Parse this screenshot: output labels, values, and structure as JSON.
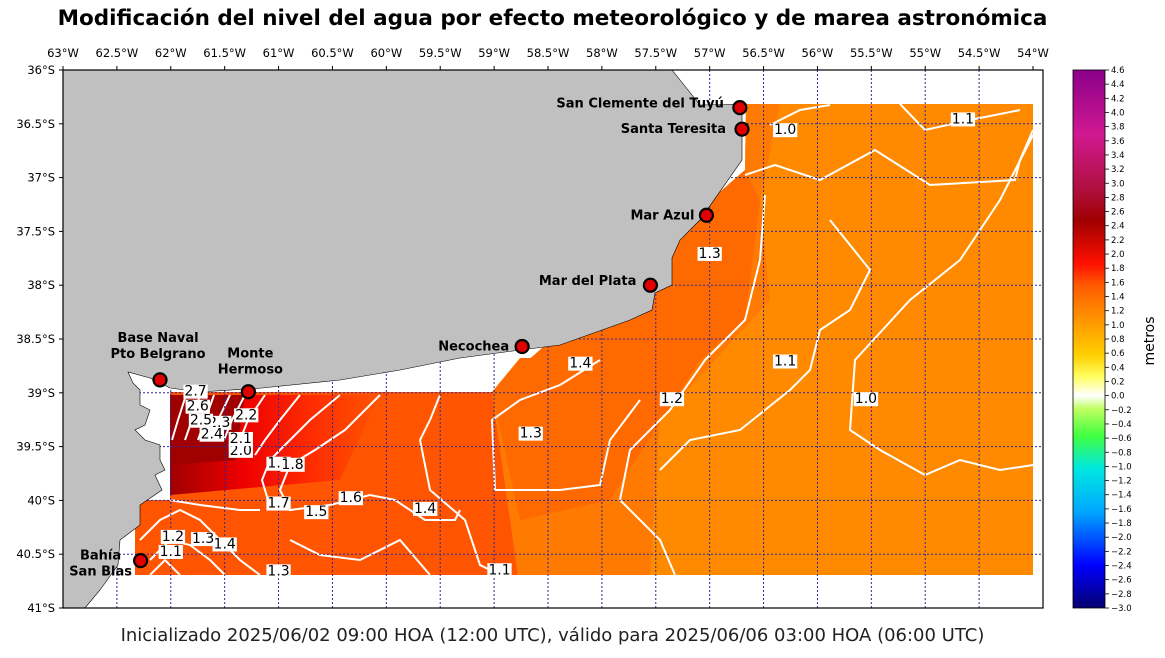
{
  "title": "Modificación del nivel del agua por efecto meteorológico y de marea astronómica",
  "footer": "Inicializado 2025/06/02 09:00 HOA (12:00 UTC), válido para 2025/06/06 03:00 HOA (06:00 UTC)",
  "colors": {
    "land": "#c0c0c0",
    "grid": "#2a2aa0",
    "station_fill": "#e00000",
    "contour": "#ffffff"
  },
  "chart_data": {
    "type": "map",
    "lon_ticks": [
      -63,
      -62.5,
      -62,
      -61.5,
      -61,
      -60.5,
      -60,
      -59.5,
      -59,
      -58.5,
      -58,
      -57.5,
      -57,
      -56.5,
      -56,
      -55.5,
      -55,
      -54.5,
      -54
    ],
    "lon_labels": [
      "63°W",
      "62.5°W",
      "62°W",
      "61.5°W",
      "61°W",
      "60.5°W",
      "60°W",
      "59.5°W",
      "59°W",
      "58.5°W",
      "58°W",
      "57.5°W",
      "57°W",
      "56.5°W",
      "56°W",
      "55.5°W",
      "55°W",
      "54.5°W",
      "54°W"
    ],
    "lat_ticks": [
      -36,
      -36.5,
      -37,
      -37.5,
      -38,
      -38.5,
      -39,
      -39.5,
      -40,
      -40.5,
      -41
    ],
    "lat_labels": [
      "36°S",
      "36.5°S",
      "37°S",
      "37.5°S",
      "38°S",
      "38.5°S",
      "39°S",
      "39.5°S",
      "40°S",
      "40.5°S",
      "41°S"
    ],
    "colorbar": {
      "label": "metros",
      "min": -3.0,
      "max": 4.6,
      "ticks": [
        "4.6",
        "4.4",
        "4.2",
        "4.0",
        "3.8",
        "3.6",
        "3.4",
        "3.2",
        "3.0",
        "2.8",
        "2.6",
        "2.4",
        "2.2",
        "2.0",
        "1.8",
        "1.6",
        "1.4",
        "1.2",
        "1.0",
        "0.8",
        "0.6",
        "0.4",
        "0.2",
        "0.0",
        "−0.2",
        "−0.4",
        "−0.6",
        "−0.8",
        "−1.0",
        "−1.2",
        "−1.4",
        "−1.6",
        "−1.8",
        "−2.0",
        "−2.2",
        "−2.4",
        "−2.6",
        "−2.8",
        "−3.0"
      ]
    },
    "stations": [
      {
        "name": "San Clemente del Tuyú",
        "lon": -56.72,
        "lat": -36.35
      },
      {
        "name": "Santa Teresita",
        "lon": -56.7,
        "lat": -36.55
      },
      {
        "name": "Mar Azul",
        "lon": -57.03,
        "lat": -37.35
      },
      {
        "name": "Mar del Plata",
        "lon": -57.55,
        "lat": -38.0
      },
      {
        "name": "Necochea",
        "lon": -58.74,
        "lat": -38.57
      },
      {
        "name": "Base Naval Pto Belgrano",
        "label_lines": [
          "Base Naval",
          "Pto Belgrano"
        ],
        "lon": -62.1,
        "lat": -38.88
      },
      {
        "name": "Monte Hermoso",
        "label_lines": [
          "Monte",
          "Hermoso"
        ],
        "lon": -61.28,
        "lat": -38.99
      },
      {
        "name": "Bahía San Blas",
        "label_lines": [
          "Bahía",
          "San Blas"
        ],
        "lon": -62.28,
        "lat": -40.56
      }
    ],
    "contour_labels": [
      {
        "text": "1.0",
        "lon": -56.3,
        "lat": -36.55
      },
      {
        "text": "1.1",
        "lon": -54.65,
        "lat": -36.45
      },
      {
        "text": "1.3",
        "lon": -57.0,
        "lat": -37.7
      },
      {
        "text": "1.4",
        "lon": -58.2,
        "lat": -38.72
      },
      {
        "text": "1.1",
        "lon": -56.3,
        "lat": -38.7
      },
      {
        "text": "1.0",
        "lon": -55.55,
        "lat": -39.05
      },
      {
        "text": "1.2",
        "lon": -57.35,
        "lat": -39.05
      },
      {
        "text": "1.3",
        "lon": -58.66,
        "lat": -39.37
      },
      {
        "text": "1.4",
        "lon": -59.64,
        "lat": -40.07
      },
      {
        "text": "1.6",
        "lon": -60.33,
        "lat": -39.97
      },
      {
        "text": "1.5",
        "lon": -60.65,
        "lat": -40.1
      },
      {
        "text": "1.7",
        "lon": -61.0,
        "lat": -40.02
      },
      {
        "text": "1.9",
        "lon": -61.0,
        "lat": -39.65
      },
      {
        "text": "1.8",
        "lon": -60.87,
        "lat": -39.66
      },
      {
        "text": "2.0",
        "lon": -61.35,
        "lat": -39.53
      },
      {
        "text": "2.1",
        "lon": -61.35,
        "lat": -39.42
      },
      {
        "text": "2.2",
        "lon": -61.3,
        "lat": -39.2
      },
      {
        "text": "2.3",
        "lon": -61.55,
        "lat": -39.27
      },
      {
        "text": "2.4",
        "lon": -61.62,
        "lat": -39.38
      },
      {
        "text": "2.5",
        "lon": -61.72,
        "lat": -39.25
      },
      {
        "text": "2.6",
        "lon": -61.75,
        "lat": -39.12
      },
      {
        "text": "2.7",
        "lon": -61.77,
        "lat": -38.98
      },
      {
        "text": "1.4",
        "lon": -61.5,
        "lat": -40.4
      },
      {
        "text": "1.3",
        "lon": -61.7,
        "lat": -40.35
      },
      {
        "text": "1.2",
        "lon": -61.98,
        "lat": -40.33
      },
      {
        "text": "1.1",
        "lon": -62.0,
        "lat": -40.47
      },
      {
        "text": "1.3",
        "lon": -61.0,
        "lat": -40.65
      },
      {
        "text": "1.1",
        "lon": -58.95,
        "lat": -40.64
      }
    ]
  }
}
